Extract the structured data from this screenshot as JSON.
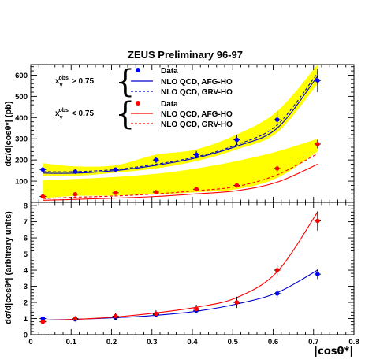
{
  "chart_data": [
    {
      "type": "scatter",
      "panel": "top",
      "title": "ZEUS Preliminary 96-97",
      "ylabel": "dσ/d|cosθ*| (pb)",
      "xlabel": "",
      "xlim": [
        0,
        0.8
      ],
      "ylim": [
        0,
        650
      ],
      "x_ticks": [
        "0",
        "0.1",
        "0.2",
        "0.3",
        "0.4",
        "0.5",
        "0.6",
        "0.7",
        "0.8"
      ],
      "y_ticks": [
        100,
        200,
        300,
        400,
        500,
        600
      ],
      "legend_groups": [
        {
          "condition": "x_γ^obs > 0.75",
          "condition_main": "x",
          "condition_sub": "γ",
          "condition_sup": "obs",
          "condition_rel": "> 0.75",
          "entries": [
            "Data",
            "NLO QCD, AFG-HO",
            "NLO QCD, GRV-HO"
          ]
        },
        {
          "condition": "x_γ^obs < 0.75",
          "condition_main": "x",
          "condition_sub": "γ",
          "condition_sup": "obs",
          "condition_rel": "< 0.75",
          "entries": [
            "Data",
            "NLO QCD, AFG-HO",
            "NLO QCD, GRV-HO"
          ]
        }
      ],
      "series": [
        {
          "name": "Data",
          "group": "x_γ^obs > 0.75",
          "color": "#0000ff",
          "x": [
            0.03,
            0.11,
            0.21,
            0.31,
            0.41,
            0.51,
            0.61,
            0.71
          ],
          "y": [
            155,
            145,
            155,
            200,
            225,
            295,
            390,
            575
          ],
          "yerr": [
            12,
            10,
            10,
            15,
            18,
            25,
            40,
            55
          ]
        },
        {
          "name": "NLO QCD, AFG-HO",
          "group": "x_γ^obs > 0.75",
          "style": "solid",
          "color": "#0000cc",
          "x": [
            0.03,
            0.11,
            0.21,
            0.31,
            0.41,
            0.51,
            0.61,
            0.71
          ],
          "y": [
            138,
            138,
            150,
            175,
            210,
            265,
            350,
            595
          ]
        },
        {
          "name": "NLO QCD, GRV-HO",
          "group": "x_γ^obs > 0.75",
          "style": "dashed",
          "color": "#0000cc",
          "x": [
            0.03,
            0.11,
            0.21,
            0.31,
            0.41,
            0.51,
            0.61,
            0.71
          ],
          "y": [
            145,
            145,
            155,
            180,
            215,
            272,
            365,
            610
          ]
        },
        {
          "name": "Data",
          "group": "x_γ^obs < 0.75",
          "color": "#ff0000",
          "x": [
            0.03,
            0.11,
            0.21,
            0.31,
            0.41,
            0.51,
            0.61,
            0.71
          ],
          "y": [
            28,
            38,
            45,
            48,
            62,
            80,
            160,
            275
          ],
          "yerr": [
            4,
            5,
            5,
            6,
            8,
            10,
            15,
            20
          ]
        },
        {
          "name": "NLO QCD, AFG-HO",
          "group": "x_γ^obs < 0.75",
          "style": "solid",
          "color": "#ff0000",
          "x": [
            0.03,
            0.11,
            0.21,
            0.31,
            0.41,
            0.51,
            0.61,
            0.71
          ],
          "y": [
            10,
            14,
            20,
            28,
            40,
            55,
            95,
            180
          ]
        },
        {
          "name": "NLO QCD, GRV-HO",
          "group": "x_γ^obs < 0.75",
          "style": "dashed",
          "color": "#ff0000",
          "x": [
            0.03,
            0.11,
            0.21,
            0.31,
            0.41,
            0.51,
            0.61,
            0.71
          ],
          "y": [
            18,
            24,
            30,
            40,
            55,
            75,
            130,
            230
          ]
        }
      ],
      "bands": [
        {
          "group": "x_γ^obs > 0.75",
          "color": "#ffff00",
          "x": [
            0.03,
            0.11,
            0.21,
            0.31,
            0.41,
            0.51,
            0.61,
            0.71
          ],
          "low": [
            125,
            125,
            140,
            160,
            195,
            250,
            330,
            560
          ],
          "high": [
            185,
            170,
            175,
            225,
            250,
            320,
            430,
            650
          ]
        },
        {
          "group": "x_γ^obs < 0.75",
          "color": "#ffff00",
          "x": [
            0.03,
            0.11,
            0.21,
            0.31,
            0.41,
            0.51,
            0.61,
            0.71
          ],
          "low": [
            20,
            30,
            32,
            38,
            48,
            62,
            115,
            240
          ],
          "high": [
            105,
            110,
            120,
            135,
            160,
            195,
            240,
            300
          ]
        }
      ]
    },
    {
      "type": "scatter",
      "panel": "bottom",
      "title": "",
      "ylabel": "dσ/d|cosθ*| (arbitrary units)",
      "xlabel": "|cosθ*|",
      "xlim": [
        0,
        0.8
      ],
      "ylim": [
        0,
        8.2
      ],
      "x_ticks": [
        "0",
        "0.1",
        "0.2",
        "0.3",
        "0.4",
        "0.5",
        "0.6",
        "0.7",
        "0.8"
      ],
      "y_ticks": [
        0,
        1,
        2,
        3,
        4,
        5,
        6,
        7,
        8
      ],
      "series": [
        {
          "name": "Data, x_γ^obs > 0.75",
          "color": "#0000ff",
          "x": [
            0.03,
            0.11,
            0.21,
            0.31,
            0.41,
            0.51,
            0.61,
            0.71
          ],
          "y": [
            1.0,
            0.95,
            1.05,
            1.25,
            1.5,
            2.0,
            2.55,
            3.75
          ],
          "yerr": [
            0.1,
            0.1,
            0.1,
            0.15,
            0.15,
            0.2,
            0.25,
            0.3
          ]
        },
        {
          "name": "Data, x_γ^obs < 0.75",
          "color": "#ff0000",
          "x": [
            0.03,
            0.11,
            0.21,
            0.31,
            0.41,
            0.51,
            0.61,
            0.71
          ],
          "y": [
            0.8,
            1.0,
            1.15,
            1.3,
            1.6,
            2.0,
            4.0,
            7.05
          ],
          "yerr": [
            0.15,
            0.15,
            0.2,
            0.2,
            0.25,
            0.35,
            0.35,
            0.6
          ]
        },
        {
          "name": "NLO QCD, x_γ^obs > 0.75",
          "style": "solid",
          "color": "#0000cc",
          "x": [
            0.03,
            0.11,
            0.21,
            0.31,
            0.41,
            0.51,
            0.61,
            0.71
          ],
          "y": [
            0.9,
            0.95,
            1.05,
            1.2,
            1.45,
            1.9,
            2.6,
            4.0
          ]
        },
        {
          "name": "NLO QCD, x_γ^obs < 0.75",
          "style": "solid",
          "color": "#ff0000",
          "x": [
            0.03,
            0.11,
            0.21,
            0.31,
            0.41,
            0.51,
            0.61,
            0.71
          ],
          "y": [
            0.9,
            0.95,
            1.1,
            1.35,
            1.7,
            2.3,
            3.9,
            7.6
          ]
        }
      ]
    }
  ]
}
